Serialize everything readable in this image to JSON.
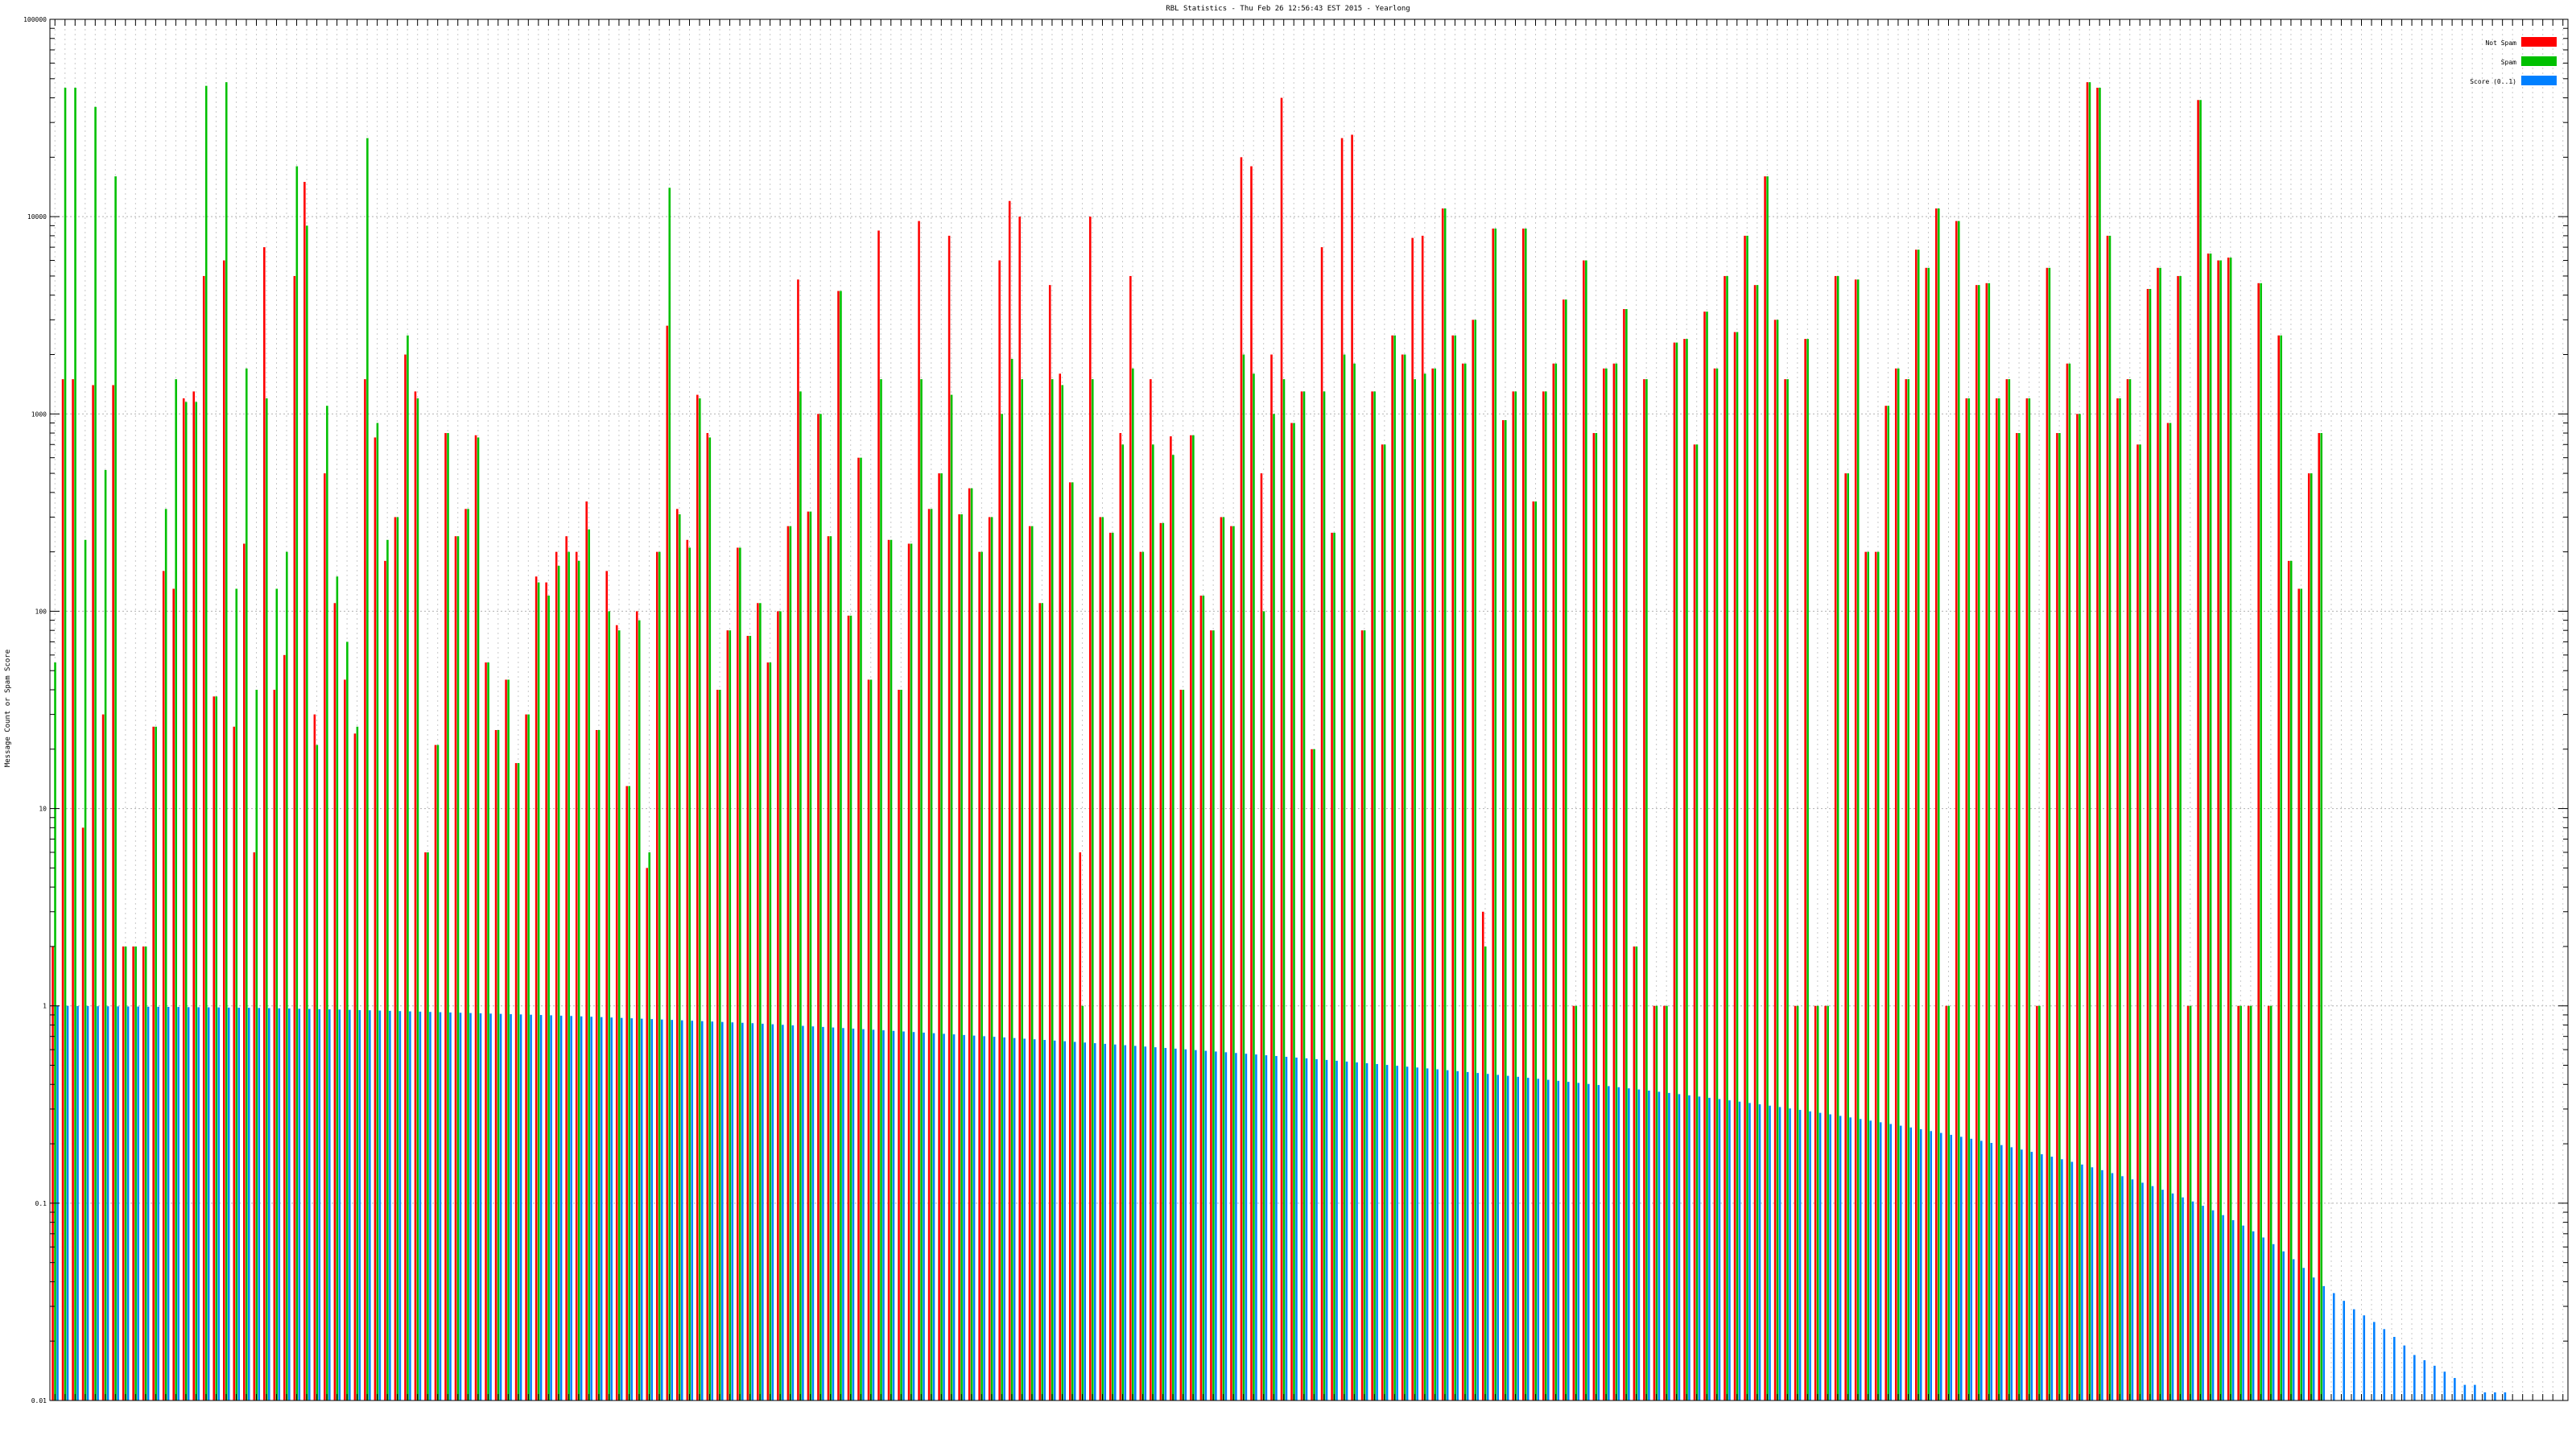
{
  "chart_data": {
    "type": "bar",
    "title": "RBL Statistics - Thu Feb 26 12:56:43 EST 2015 - Yearlong",
    "ylabel": "Message Count or Spam Score",
    "xlabel": "",
    "yscale": "log",
    "ylim": [
      0.01,
      100000
    ],
    "yticks": [
      {
        "value": 0.01,
        "label": "0.01"
      },
      {
        "value": 0.1,
        "label": "0.1"
      },
      {
        "value": 1,
        "label": "1"
      },
      {
        "value": 10,
        "label": "10"
      },
      {
        "value": 100,
        "label": "100"
      },
      {
        "value": 1000,
        "label": "1000"
      },
      {
        "value": 10000,
        "label": "10000"
      },
      {
        "value": 100000,
        "label": "100000"
      }
    ],
    "grid": true,
    "legend_position": "top-right",
    "category_count": 250,
    "series": [
      {
        "name": "Not Spam",
        "color": "#ff0000",
        "values": [
          2,
          1500,
          1500,
          8,
          1400,
          30,
          1400,
          2,
          2,
          2,
          26,
          160,
          130,
          1200,
          1300,
          5000,
          37,
          6000,
          26,
          220,
          6,
          7000,
          40,
          60,
          5000,
          15000,
          30,
          500,
          110,
          45,
          24,
          1500,
          760,
          180,
          300,
          2000,
          1300,
          6,
          21,
          800,
          240,
          330,
          780,
          55,
          25,
          45,
          17,
          30,
          150,
          140,
          200,
          240,
          200,
          360,
          25,
          160,
          85,
          13,
          100,
          5,
          200,
          2800,
          330,
          230,
          1250,
          800,
          40,
          80,
          210,
          75,
          110,
          55,
          100,
          270,
          4800,
          320,
          1000,
          240,
          4200,
          95,
          600,
          45,
          8500,
          230,
          40,
          220,
          9500,
          330,
          500,
          8000,
          310,
          420,
          200,
          300,
          6000,
          12000,
          10000,
          270,
          110,
          4500,
          1600,
          450,
          6,
          10000,
          300,
          250,
          800,
          5000,
          200,
          1500,
          280,
          770,
          40,
          780,
          120,
          80,
          300,
          270,
          20000,
          18000,
          500,
          2000,
          40000,
          900,
          1300,
          20,
          7000,
          250,
          25000,
          26000,
          80,
          1300,
          700,
          2500,
          2000,
          7800,
          8000,
          1700,
          11000,
          2500,
          1800,
          3000,
          3,
          8700,
          930,
          1300,
          8700,
          360,
          1300,
          1800,
          3800,
          1,
          6000,
          800,
          1700,
          1800,
          3400,
          2,
          1500,
          1,
          1,
          2300,
          2400,
          700,
          3300,
          1700,
          5000,
          2600,
          8000,
          4500,
          16000,
          3000,
          1500,
          1,
          2400,
          1,
          1,
          5000,
          500,
          4800,
          200,
          200,
          1100,
          1700,
          1500,
          6800,
          5500,
          11000,
          1,
          9500,
          1200,
          4500,
          4600,
          1200,
          1500,
          800,
          1200,
          1,
          5500,
          800,
          1800,
          1000,
          48000,
          45000,
          8000,
          1200,
          1500,
          700,
          4300,
          5500,
          900,
          5000,
          1,
          39000,
          6500,
          6000,
          6200,
          1,
          1,
          4600,
          1,
          2500,
          180,
          130,
          500,
          800
        ]
      },
      {
        "name": "Spam",
        "color": "#00c000",
        "values": [
          55,
          45000,
          45000,
          230,
          36000,
          520,
          16000,
          2,
          2,
          2,
          26,
          330,
          1500,
          1150,
          1150,
          46000,
          37,
          48000,
          130,
          1700,
          40,
          1200,
          130,
          200,
          18000,
          9000,
          21,
          1100,
          150,
          70,
          26,
          25000,
          900,
          230,
          300,
          2500,
          1200,
          6,
          21,
          800,
          240,
          330,
          760,
          55,
          25,
          45,
          17,
          30,
          140,
          120,
          170,
          200,
          180,
          260,
          25,
          100,
          80,
          13,
          90,
          6,
          200,
          14000,
          310,
          210,
          1200,
          760,
          40,
          80,
          210,
          75,
          110,
          55,
          100,
          270,
          1300,
          320,
          1000,
          240,
          4200,
          95,
          600,
          45,
          1500,
          230,
          40,
          220,
          1500,
          330,
          500,
          1250,
          310,
          420,
          200,
          300,
          1000,
          1900,
          1500,
          270,
          110,
          1500,
          1400,
          450,
          1,
          1500,
          300,
          250,
          700,
          1700,
          200,
          700,
          280,
          620,
          40,
          780,
          120,
          80,
          300,
          270,
          2000,
          1600,
          100,
          1000,
          1500,
          900,
          1300,
          20,
          1300,
          250,
          2000,
          1800,
          80,
          1300,
          700,
          2500,
          2000,
          1500,
          1600,
          1700,
          11000,
          2500,
          1800,
          3000,
          2,
          8700,
          930,
          1300,
          8700,
          360,
          1300,
          1800,
          3800,
          1,
          6000,
          800,
          1700,
          1800,
          3400,
          2,
          1500,
          1,
          1,
          2300,
          2400,
          700,
          3300,
          1700,
          5000,
          2600,
          8000,
          4500,
          16000,
          3000,
          1500,
          1,
          2400,
          1,
          1,
          5000,
          500,
          4800,
          200,
          200,
          1100,
          1700,
          1500,
          6800,
          5500,
          11000,
          1,
          9500,
          1200,
          4500,
          4600,
          1200,
          1500,
          800,
          1200,
          1,
          5500,
          800,
          1800,
          1000,
          48000,
          45000,
          8000,
          1200,
          1500,
          700,
          4300,
          5500,
          900,
          5000,
          1,
          39000,
          6500,
          6000,
          6200,
          1,
          1,
          4600,
          1,
          2500,
          180,
          130,
          500,
          800
        ]
      },
      {
        "name": "Score (0..1)",
        "color": "#0080ff",
        "values": [
          1.0,
          1.0,
          0.998,
          0.998,
          0.996,
          0.995,
          0.994,
          0.993,
          0.992,
          0.99,
          0.989,
          0.988,
          0.987,
          0.985,
          0.984,
          0.983,
          0.982,
          0.98,
          0.979,
          0.978,
          0.976,
          0.974,
          0.972,
          0.97,
          0.967,
          0.965,
          0.962,
          0.96,
          0.958,
          0.955,
          0.952,
          0.95,
          0.947,
          0.944,
          0.941,
          0.938,
          0.935,
          0.932,
          0.929,
          0.926,
          0.923,
          0.92,
          0.917,
          0.914,
          0.911,
          0.908,
          0.905,
          0.902,
          0.899,
          0.896,
          0.892,
          0.889,
          0.885,
          0.881,
          0.877,
          0.873,
          0.869,
          0.865,
          0.861,
          0.857,
          0.853,
          0.849,
          0.845,
          0.841,
          0.837,
          0.833,
          0.829,
          0.825,
          0.821,
          0.817,
          0.812,
          0.807,
          0.802,
          0.797,
          0.792,
          0.787,
          0.782,
          0.777,
          0.772,
          0.767,
          0.762,
          0.757,
          0.752,
          0.747,
          0.742,
          0.737,
          0.732,
          0.727,
          0.722,
          0.717,
          0.712,
          0.707,
          0.702,
          0.697,
          0.692,
          0.687,
          0.682,
          0.677,
          0.672,
          0.667,
          0.662,
          0.657,
          0.652,
          0.647,
          0.642,
          0.637,
          0.632,
          0.627,
          0.622,
          0.617,
          0.612,
          0.607,
          0.602,
          0.597,
          0.592,
          0.587,
          0.582,
          0.577,
          0.572,
          0.567,
          0.562,
          0.557,
          0.552,
          0.547,
          0.542,
          0.537,
          0.532,
          0.527,
          0.522,
          0.517,
          0.512,
          0.507,
          0.502,
          0.497,
          0.492,
          0.487,
          0.482,
          0.477,
          0.472,
          0.467,
          0.462,
          0.457,
          0.452,
          0.447,
          0.442,
          0.437,
          0.432,
          0.427,
          0.422,
          0.417,
          0.412,
          0.407,
          0.402,
          0.397,
          0.392,
          0.387,
          0.382,
          0.377,
          0.372,
          0.367,
          0.362,
          0.357,
          0.352,
          0.347,
          0.342,
          0.337,
          0.332,
          0.327,
          0.322,
          0.317,
          0.312,
          0.307,
          0.302,
          0.297,
          0.292,
          0.287,
          0.282,
          0.277,
          0.272,
          0.267,
          0.262,
          0.257,
          0.252,
          0.247,
          0.242,
          0.237,
          0.232,
          0.227,
          0.222,
          0.217,
          0.212,
          0.207,
          0.202,
          0.197,
          0.192,
          0.187,
          0.182,
          0.177,
          0.172,
          0.167,
          0.162,
          0.157,
          0.152,
          0.147,
          0.142,
          0.137,
          0.132,
          0.127,
          0.122,
          0.117,
          0.112,
          0.107,
          0.102,
          0.097,
          0.092,
          0.087,
          0.082,
          0.077,
          0.072,
          0.067,
          0.062,
          0.057,
          0.052,
          0.047,
          0.042,
          0.038,
          0.035,
          0.032,
          0.029,
          0.027,
          0.025,
          0.023,
          0.021,
          0.019,
          0.017,
          0.016,
          0.015,
          0.014,
          0.013,
          0.012,
          0.012,
          0.011,
          0.011,
          0.011,
          0.01,
          0.01,
          0.01,
          0.01,
          0.01,
          0.01
        ]
      }
    ]
  }
}
